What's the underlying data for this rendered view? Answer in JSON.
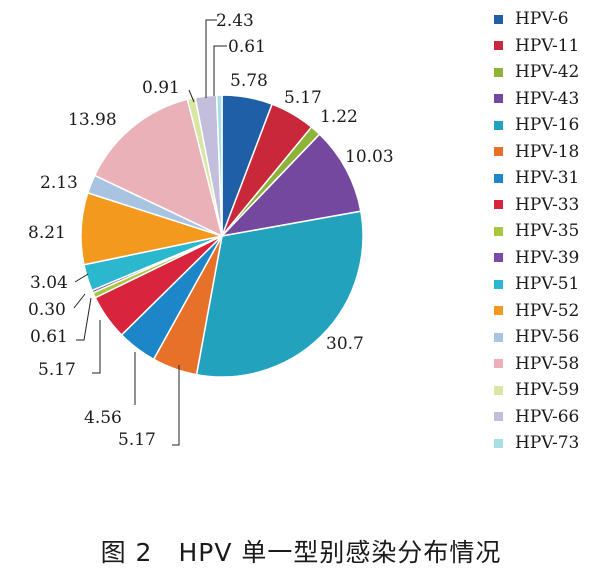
{
  "chart_data": {
    "type": "pie",
    "title": "",
    "categories": [
      "HPV-6",
      "HPV-11",
      "HPV-42",
      "HPV-43",
      "HPV-16",
      "HPV-18",
      "HPV-31",
      "HPV-33",
      "HPV-35",
      "HPV-39",
      "HPV-51",
      "HPV-52",
      "HPV-56",
      "HPV-58",
      "HPV-59",
      "HPV-66",
      "HPV-73"
    ],
    "values": [
      5.78,
      5.17,
      1.22,
      10.03,
      30.7,
      5.17,
      4.56,
      5.17,
      0.61,
      0.3,
      3.04,
      8.21,
      2.13,
      13.98,
      0.91,
      2.43,
      0.61
    ],
    "value_labels": [
      "5.78",
      "5.17",
      "1.22",
      "10.03",
      "30.7",
      "5.17",
      "4.56",
      "5.17",
      "0.61",
      "0.30",
      "3.04",
      "8.21",
      "2.13",
      "13.98",
      "0.91",
      "2.43",
      "0.61"
    ],
    "colors": [
      "#1f5fa8",
      "#c8283a",
      "#8db338",
      "#7548a0",
      "#22a2bd",
      "#e8712a",
      "#1d86c8",
      "#d8243c",
      "#a9c63e",
      "#7a4aa8",
      "#2bb8cf",
      "#f39a1e",
      "#a9c4e2",
      "#eab1b8",
      "#d7e6a3",
      "#c2bedb",
      "#a7dfe4"
    ],
    "legend_position": "right"
  },
  "caption": "图 2　HPV 单一型别感染分布情况"
}
